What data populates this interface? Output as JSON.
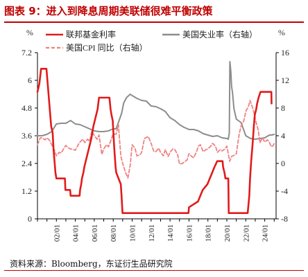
{
  "figure": {
    "title": "图表 9：进入到降息周期美联储很难平衡政策",
    "source": "资料来源：Bloomberg，东证衍生品研究院"
  },
  "chart_data": {
    "type": "line",
    "left_axis": {
      "unit": "%",
      "ylim": [
        0,
        7.2
      ],
      "ticks": [
        "0",
        "1.2",
        "2.4",
        "3.6",
        "4.8",
        "6",
        "7.2"
      ]
    },
    "right_axis": {
      "unit": "%",
      "ylim": [
        -8,
        16
      ],
      "ticks": [
        "-8",
        "-4",
        "0",
        "4",
        "8",
        "12",
        "16"
      ]
    },
    "x_axis": {
      "xlim": [
        2000,
        2025.2
      ],
      "ticks": [
        "02/01",
        "04/01",
        "06/01",
        "08/01",
        "10/01",
        "12/01",
        "14/01",
        "16/01",
        "18/01",
        "20/01",
        "22/01",
        "24/01"
      ]
    },
    "grid": false,
    "legend": {
      "placement": "top"
    },
    "series": [
      {
        "name": "联邦基金利率",
        "axis": "left",
        "color": "#e21a1a",
        "style": "solid",
        "points": [
          [
            2000,
            5.5
          ],
          [
            2000.2,
            5.85
          ],
          [
            2000.38,
            6.5
          ],
          [
            2000.95,
            6.5
          ],
          [
            2001.05,
            6.0
          ],
          [
            2001.15,
            5.5
          ],
          [
            2001.25,
            5.0
          ],
          [
            2001.35,
            4.5
          ],
          [
            2001.45,
            4.0
          ],
          [
            2001.6,
            3.75
          ],
          [
            2001.7,
            3.0
          ],
          [
            2001.8,
            2.5
          ],
          [
            2001.9,
            2.0
          ],
          [
            2002.0,
            1.75
          ],
          [
            2002.9,
            1.75
          ],
          [
            2002.95,
            1.25
          ],
          [
            2003.45,
            1.25
          ],
          [
            2003.5,
            1.0
          ],
          [
            2004.45,
            1.0
          ],
          [
            2004.5,
            1.25
          ],
          [
            2004.62,
            1.5
          ],
          [
            2004.7,
            1.75
          ],
          [
            2004.85,
            2.0
          ],
          [
            2004.95,
            2.25
          ],
          [
            2005.1,
            2.5
          ],
          [
            2005.25,
            2.75
          ],
          [
            2005.4,
            3.0
          ],
          [
            2005.55,
            3.25
          ],
          [
            2005.7,
            3.5
          ],
          [
            2005.8,
            3.75
          ],
          [
            2005.9,
            4.0
          ],
          [
            2006.05,
            4.25
          ],
          [
            2006.2,
            4.5
          ],
          [
            2006.35,
            4.75
          ],
          [
            2006.5,
            5.25
          ],
          [
            2007.6,
            5.25
          ],
          [
            2007.72,
            4.75
          ],
          [
            2007.82,
            4.5
          ],
          [
            2007.95,
            4.25
          ],
          [
            2008.05,
            3.5
          ],
          [
            2008.12,
            3.0
          ],
          [
            2008.25,
            2.25
          ],
          [
            2008.32,
            2.0
          ],
          [
            2008.8,
            1.5
          ],
          [
            2008.88,
            1.0
          ],
          [
            2008.98,
            0.25
          ],
          [
            2015.95,
            0.25
          ],
          [
            2016.0,
            0.5
          ],
          [
            2016.95,
            0.75
          ],
          [
            2017.2,
            1.0
          ],
          [
            2017.45,
            1.25
          ],
          [
            2017.95,
            1.5
          ],
          [
            2018.2,
            1.75
          ],
          [
            2018.45,
            2.0
          ],
          [
            2018.7,
            2.25
          ],
          [
            2018.98,
            2.5
          ],
          [
            2019.55,
            2.5
          ],
          [
            2019.6,
            2.25
          ],
          [
            2019.75,
            2.0
          ],
          [
            2019.85,
            1.75
          ],
          [
            2020.15,
            1.75
          ],
          [
            2020.17,
            1.25
          ],
          [
            2020.2,
            0.25
          ],
          [
            2022.2,
            0.25
          ],
          [
            2022.37,
            1.0
          ],
          [
            2022.45,
            1.75
          ],
          [
            2022.57,
            2.5
          ],
          [
            2022.72,
            3.25
          ],
          [
            2022.85,
            4.0
          ],
          [
            2022.95,
            4.5
          ],
          [
            2023.1,
            4.75
          ],
          [
            2023.2,
            5.0
          ],
          [
            2023.35,
            5.25
          ],
          [
            2023.55,
            5.5
          ],
          [
            2024.7,
            5.5
          ],
          [
            2024.72,
            5.0
          ]
        ]
      },
      {
        "name": "美国失业率（右轴）",
        "axis": "right",
        "color": "#8c8c8c",
        "style": "solid",
        "points": [
          [
            2000,
            4.0
          ],
          [
            2000.5,
            4.0
          ],
          [
            2001.0,
            4.2
          ],
          [
            2001.5,
            4.6
          ],
          [
            2002.0,
            5.7
          ],
          [
            2002.5,
            5.8
          ],
          [
            2003.0,
            5.8
          ],
          [
            2003.5,
            6.2
          ],
          [
            2004.0,
            5.7
          ],
          [
            2004.5,
            5.6
          ],
          [
            2005.0,
            5.3
          ],
          [
            2005.5,
            5.0
          ],
          [
            2006.0,
            4.7
          ],
          [
            2006.5,
            4.6
          ],
          [
            2007.0,
            4.6
          ],
          [
            2007.5,
            4.7
          ],
          [
            2008.0,
            5.0
          ],
          [
            2008.3,
            5.0
          ],
          [
            2008.6,
            6.1
          ],
          [
            2008.9,
            7.3
          ],
          [
            2009.1,
            8.7
          ],
          [
            2009.4,
            9.5
          ],
          [
            2009.8,
            10.0
          ],
          [
            2010.0,
            9.8
          ],
          [
            2010.5,
            9.4
          ],
          [
            2011.0,
            9.1
          ],
          [
            2011.5,
            9.0
          ],
          [
            2012.0,
            8.3
          ],
          [
            2012.5,
            8.2
          ],
          [
            2013.0,
            7.9
          ],
          [
            2013.5,
            7.5
          ],
          [
            2014.0,
            6.6
          ],
          [
            2014.5,
            6.2
          ],
          [
            2015.0,
            5.6
          ],
          [
            2015.5,
            5.2
          ],
          [
            2016.0,
            4.9
          ],
          [
            2016.5,
            4.9
          ],
          [
            2017.0,
            4.7
          ],
          [
            2017.5,
            4.3
          ],
          [
            2018.0,
            4.1
          ],
          [
            2018.5,
            3.9
          ],
          [
            2019.0,
            4.0
          ],
          [
            2019.5,
            3.7
          ],
          [
            2020.0,
            3.6
          ],
          [
            2020.15,
            3.5
          ],
          [
            2020.26,
            4.4
          ],
          [
            2020.32,
            14.7
          ],
          [
            2020.42,
            13.3
          ],
          [
            2020.5,
            11.1
          ],
          [
            2020.6,
            10.2
          ],
          [
            2020.75,
            7.9
          ],
          [
            2021.0,
            6.4
          ],
          [
            2021.5,
            5.9
          ],
          [
            2022.0,
            4.0
          ],
          [
            2022.5,
            3.6
          ],
          [
            2023.0,
            3.5
          ],
          [
            2023.5,
            3.6
          ],
          [
            2024.0,
            3.7
          ],
          [
            2024.5,
            4.1
          ],
          [
            2024.75,
            4.1
          ],
          [
            2025.0,
            4.2
          ]
        ]
      },
      {
        "name": "美国CPI 同比（右轴）",
        "axis": "right",
        "color": "#f08080",
        "style": "dashed",
        "points": [
          [
            2000,
            2.7
          ],
          [
            2000.3,
            3.7
          ],
          [
            2000.5,
            3.7
          ],
          [
            2000.8,
            3.4
          ],
          [
            2001.0,
            3.7
          ],
          [
            2001.3,
            3.3
          ],
          [
            2001.5,
            2.7
          ],
          [
            2001.8,
            1.9
          ],
          [
            2002.0,
            1.1
          ],
          [
            2002.3,
            1.6
          ],
          [
            2002.5,
            1.5
          ],
          [
            2002.8,
            2.2
          ],
          [
            2003.0,
            2.6
          ],
          [
            2003.3,
            2.2
          ],
          [
            2003.5,
            2.1
          ],
          [
            2003.8,
            2.0
          ],
          [
            2004.0,
            1.9
          ],
          [
            2004.3,
            2.7
          ],
          [
            2004.5,
            3.1
          ],
          [
            2004.8,
            3.5
          ],
          [
            2005.0,
            3.0
          ],
          [
            2005.3,
            3.5
          ],
          [
            2005.5,
            3.2
          ],
          [
            2005.75,
            4.7
          ],
          [
            2006.0,
            4.0
          ],
          [
            2006.3,
            3.5
          ],
          [
            2006.5,
            4.1
          ],
          [
            2006.8,
            1.3
          ],
          [
            2007.0,
            2.1
          ],
          [
            2007.3,
            2.7
          ],
          [
            2007.5,
            2.4
          ],
          [
            2007.8,
            3.5
          ],
          [
            2008.0,
            4.3
          ],
          [
            2008.3,
            4.2
          ],
          [
            2008.55,
            5.6
          ],
          [
            2008.8,
            1.1
          ],
          [
            2009.0,
            0.0
          ],
          [
            2009.3,
            -1.3
          ],
          [
            2009.55,
            -2.1
          ],
          [
            2009.8,
            -0.2
          ],
          [
            2010.0,
            2.7
          ],
          [
            2010.3,
            2.2
          ],
          [
            2010.5,
            1.1
          ],
          [
            2010.8,
            1.2
          ],
          [
            2011.0,
            1.6
          ],
          [
            2011.3,
            3.6
          ],
          [
            2011.7,
            3.9
          ],
          [
            2012.0,
            2.9
          ],
          [
            2012.3,
            1.7
          ],
          [
            2012.5,
            1.7
          ],
          [
            2012.8,
            2.2
          ],
          [
            2013.0,
            1.6
          ],
          [
            2013.3,
            1.1
          ],
          [
            2013.5,
            2.0
          ],
          [
            2013.8,
            1.0
          ],
          [
            2014.0,
            1.6
          ],
          [
            2014.3,
            2.1
          ],
          [
            2014.5,
            2.0
          ],
          [
            2014.8,
            1.3
          ],
          [
            2015.0,
            -0.1
          ],
          [
            2015.3,
            0.0
          ],
          [
            2015.5,
            0.2
          ],
          [
            2015.8,
            0.5
          ],
          [
            2016.0,
            1.4
          ],
          [
            2016.3,
            1.0
          ],
          [
            2016.5,
            0.8
          ],
          [
            2016.8,
            1.7
          ],
          [
            2017.0,
            2.5
          ],
          [
            2017.2,
            2.7
          ],
          [
            2017.5,
            1.7
          ],
          [
            2017.8,
            2.0
          ],
          [
            2018.0,
            2.1
          ],
          [
            2018.3,
            2.5
          ],
          [
            2018.5,
            2.9
          ],
          [
            2018.8,
            2.5
          ],
          [
            2019.0,
            1.6
          ],
          [
            2019.3,
            2.0
          ],
          [
            2019.5,
            1.8
          ],
          [
            2019.8,
            2.1
          ],
          [
            2020.0,
            2.5
          ],
          [
            2020.3,
            0.3
          ],
          [
            2020.5,
            1.0
          ],
          [
            2020.8,
            1.2
          ],
          [
            2021.0,
            1.4
          ],
          [
            2021.3,
            4.2
          ],
          [
            2021.5,
            5.4
          ],
          [
            2021.8,
            6.2
          ],
          [
            2022.0,
            7.5
          ],
          [
            2022.3,
            8.3
          ],
          [
            2022.45,
            9.1
          ],
          [
            2022.8,
            7.7
          ],
          [
            2023.0,
            6.4
          ],
          [
            2023.3,
            4.9
          ],
          [
            2023.5,
            3.0
          ],
          [
            2023.75,
            3.7
          ],
          [
            2024.0,
            3.1
          ],
          [
            2024.3,
            3.4
          ],
          [
            2024.5,
            3.0
          ],
          [
            2024.7,
            2.4
          ],
          [
            2024.9,
            2.6
          ],
          [
            2025.0,
            2.9
          ]
        ]
      }
    ]
  }
}
